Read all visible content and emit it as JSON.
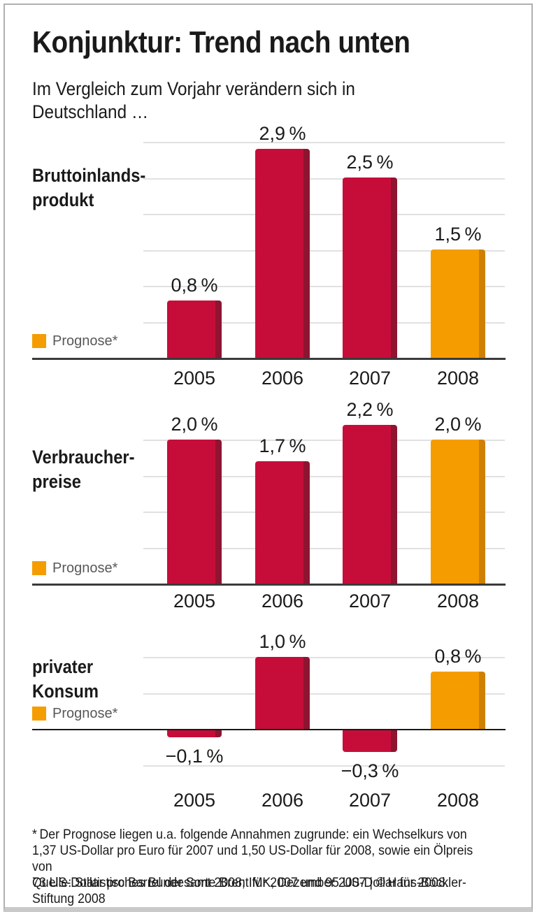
{
  "header": {
    "title": "Konjunktur: Trend nach unten",
    "subtitle": "Im Vergleich zum Vorjahr verändern sich in\nDeutschland …"
  },
  "colors": {
    "bar_actual": "#c60d39",
    "bar_actual_shade": "#8e1430",
    "bar_forecast": "#f59c00",
    "bar_forecast_shade": "#ce8100"
  },
  "chart_data": [
    {
      "type": "bar",
      "title": "Bruttoinlandsprodukt",
      "row_label": "Bruttoinlands-\nprodukt",
      "categories": [
        "2005",
        "2006",
        "2007",
        "2008"
      ],
      "values": [
        0.8,
        2.9,
        2.5,
        1.5
      ],
      "value_labels": [
        "0,8 %",
        "2,9 %",
        "2,5 %",
        "1,5 %"
      ],
      "forecast_index": 3,
      "legend_label": "Prognose*",
      "unit": "%",
      "ylim": [
        0,
        3.0
      ],
      "grid_step": 0.5,
      "grid": "on",
      "legend_position": "left-bottom"
    },
    {
      "type": "bar",
      "title": "Verbraucherpreise",
      "row_label": "Verbraucher-\npreise",
      "categories": [
        "2005",
        "2006",
        "2007",
        "2008"
      ],
      "values": [
        2.0,
        1.7,
        2.2,
        2.0
      ],
      "value_labels": [
        "2,0 %",
        "1,7 %",
        "2,2 %",
        "2,0 %"
      ],
      "forecast_index": 3,
      "legend_label": "Prognose*",
      "unit": "%",
      "ylim": [
        0,
        2.0
      ],
      "grid_step": 0.5,
      "grid": "on",
      "legend_position": "left-bottom"
    },
    {
      "type": "bar",
      "title": "privater Konsum",
      "row_label": "privater\nKonsum",
      "categories": [
        "2005",
        "2006",
        "2007",
        "2008"
      ],
      "values": [
        -0.1,
        1.0,
        -0.3,
        0.8
      ],
      "value_labels": [
        "−0,1 %",
        "1,0 %",
        "−0,3 %",
        "0,8 %"
      ],
      "forecast_index": 3,
      "legend_label": "Prognose*",
      "unit": "%",
      "ylim": [
        -0.5,
        1.0
      ],
      "grid_step": 0.5,
      "grid": "on",
      "legend_position": "left-middle"
    }
  ],
  "footnote": "* Der Prognose liegen u.a. folgende Annahmen zugrunde: ein Wechselkurs von\n1,37 US-Dollar pro Euro für 2007 und 1,50 US-Dollar für 2008, sowie ein Ölpreis von\n73 US-Dollar pro Barrel der Sorte Brent für 2007 und 95 US-Dollar für 2008.",
  "source": "Quelle: Statistisches Bundesamt 2008; IMK, Dezember 2007 | © Hans-Böckler-Stiftung 2008"
}
